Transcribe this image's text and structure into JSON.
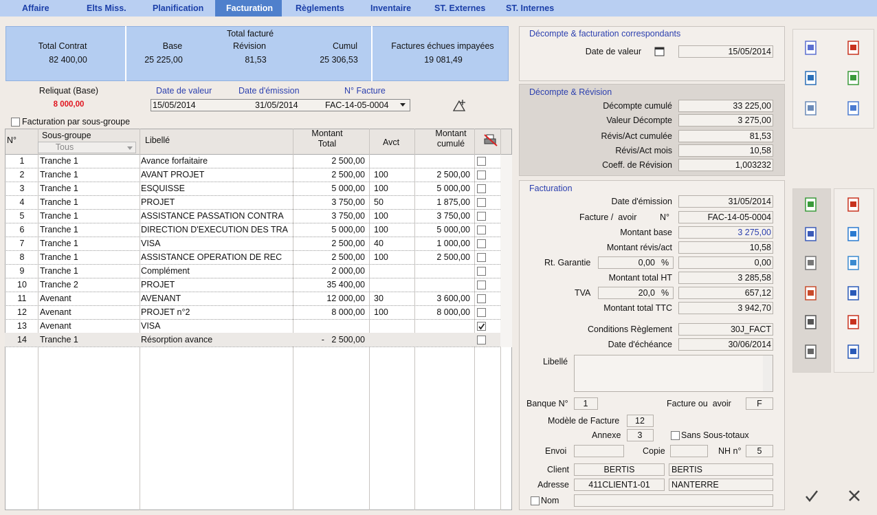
{
  "tabs": [
    "Affaire",
    "Elts Miss.",
    "Planification",
    "Facturation",
    "Règlements",
    "Inventaire",
    "ST. Externes",
    "ST. Internes"
  ],
  "summary": {
    "total_contrat": {
      "label": "Total Contrat",
      "value": "82 400,00"
    },
    "total_facture": {
      "title": "Total facturé",
      "base": {
        "label": "Base",
        "value": "25 225,00"
      },
      "revision": {
        "label": "Révision",
        "value": "81,53"
      },
      "cumul": {
        "label": "Cumul",
        "value": "25 306,53"
      }
    },
    "factures_echues": {
      "label": "Factures échues impayées",
      "value": "19 081,49"
    }
  },
  "reliquat": {
    "label": "Reliquat (Base)",
    "value": "8 000,00"
  },
  "invoice_selector": {
    "headers": [
      "Date de valeur",
      "Date d'émission",
      "N° Facture"
    ],
    "values": [
      "15/05/2014",
      "31/05/2014",
      "FAC-14-05-0004"
    ]
  },
  "group_billing": {
    "label": "Facturation par sous-groupe",
    "checked": false
  },
  "table": {
    "headers": {
      "n": "N°",
      "sous_groupe": "Sous-groupe",
      "filter": "Tous",
      "libelle": "Libellé",
      "montant_total": "Montant\nTotal",
      "avct": "Avct",
      "montant_cumule": "Montant\ncumulé"
    },
    "rows": [
      [
        "1",
        "Tranche 1",
        "Avance forfaitaire",
        "2 500,00",
        "",
        ""
      ],
      [
        "2",
        "Tranche 1",
        "AVANT PROJET",
        "2 500,00",
        "100",
        "2 500,00"
      ],
      [
        "3",
        "Tranche 1",
        "ESQUISSE",
        "5 000,00",
        "100",
        "5 000,00"
      ],
      [
        "4",
        "Tranche 1",
        "PROJET",
        "3 750,00",
        "50",
        "1 875,00"
      ],
      [
        "5",
        "Tranche 1",
        "ASSISTANCE PASSATION CONTRA",
        "3 750,00",
        "100",
        "3 750,00"
      ],
      [
        "6",
        "Tranche 1",
        "DIRECTION D'EXECUTION DES TRA",
        "5 000,00",
        "100",
        "5 000,00"
      ],
      [
        "7",
        "Tranche 1",
        "VISA",
        "2 500,00",
        "40",
        "1 000,00"
      ],
      [
        "8",
        "Tranche 1",
        "ASSISTANCE OPERATION DE REC",
        "2 500,00",
        "100",
        "2 500,00"
      ],
      [
        "9",
        "Tranche 1",
        "Complément",
        "2 000,00",
        "",
        ""
      ],
      [
        "10",
        "Tranche 2",
        "PROJET",
        "35 400,00",
        "",
        ""
      ],
      [
        "11",
        "Avenant",
        "AVENANT",
        "12 000,00",
        "30",
        "3 600,00"
      ],
      [
        "12",
        "Avenant",
        "PROJET n°2",
        "8 000,00",
        "100",
        "8 000,00"
      ],
      [
        "13",
        "Avenant",
        "VISA",
        "",
        "",
        ""
      ],
      [
        "14",
        "Tranche 1",
        "Résorption avance",
        "-   2 500,00",
        "",
        ""
      ]
    ],
    "checked": [
      false,
      false,
      false,
      false,
      false,
      false,
      false,
      false,
      false,
      false,
      false,
      false,
      true,
      false
    ]
  },
  "decompte_facturation": {
    "title": "Décompte & facturation correspondants",
    "date_label": "Date de valeur",
    "date_value": "15/05/2014"
  },
  "decompte_revision": {
    "title": "Décompte & Révision",
    "rows": [
      [
        "Décompte cumulé",
        "33 225,00"
      ],
      [
        "Valeur Décompte",
        "3 275,00"
      ],
      [
        "Révis/Act cumulée",
        "81,53"
      ],
      [
        "Révis/Act mois",
        "10,58"
      ],
      [
        "Coeff. de Révision",
        "1,003232"
      ]
    ]
  },
  "facturation": {
    "title": "Facturation",
    "date_emission": {
      "label": "Date d'émission",
      "value": "31/05/2014"
    },
    "facture_avoir": {
      "label": "Facture /  avoir",
      "label2": "N°",
      "value": "FAC-14-05-0004"
    },
    "montant_base": {
      "label": "Montant base",
      "value": "3 275,00"
    },
    "montant_revis": {
      "label": "Montant révis/act",
      "value": "10,58"
    },
    "rt_garantie": {
      "label": "Rt. Garantie",
      "rate": "0,00",
      "unit": "%",
      "value": "0,00"
    },
    "montant_ht": {
      "label": "Montant total HT",
      "value": "3 285,58"
    },
    "tva": {
      "label": "TVA",
      "rate": "20,0",
      "unit": "%",
      "value": "657,12"
    },
    "montant_ttc": {
      "label": "Montant total TTC",
      "value": "3 942,70"
    },
    "conditions": {
      "label": "Conditions Règlement",
      "value": "30J_FACT"
    },
    "date_echeance": {
      "label": "Date d'échéance",
      "value": "30/06/2014"
    },
    "libelle": {
      "label": "Libellé"
    },
    "banque": {
      "label": "Banque N°",
      "value": "1"
    },
    "facture_ou_avoir": {
      "label": "Facture ou  avoir",
      "value": "F"
    },
    "modele": {
      "label": "Modèle de Facture",
      "value": "12"
    },
    "annexe": {
      "label": "Annexe",
      "value": "3"
    },
    "sans_sous_totaux": {
      "label": "Sans Sous-totaux",
      "checked": false
    },
    "envoi": {
      "label": "Envoi"
    },
    "copie": {
      "label": "Copie"
    },
    "nh": {
      "label": "NH n°",
      "value": "5"
    },
    "client": {
      "label": "Client",
      "values": [
        "BERTIS",
        "BERTIS"
      ]
    },
    "adresse": {
      "label": "Adresse",
      "values": [
        "411CLIENT1-01",
        "NANTERRE"
      ]
    },
    "nom": {
      "label": "Nom",
      "checked": false
    }
  }
}
